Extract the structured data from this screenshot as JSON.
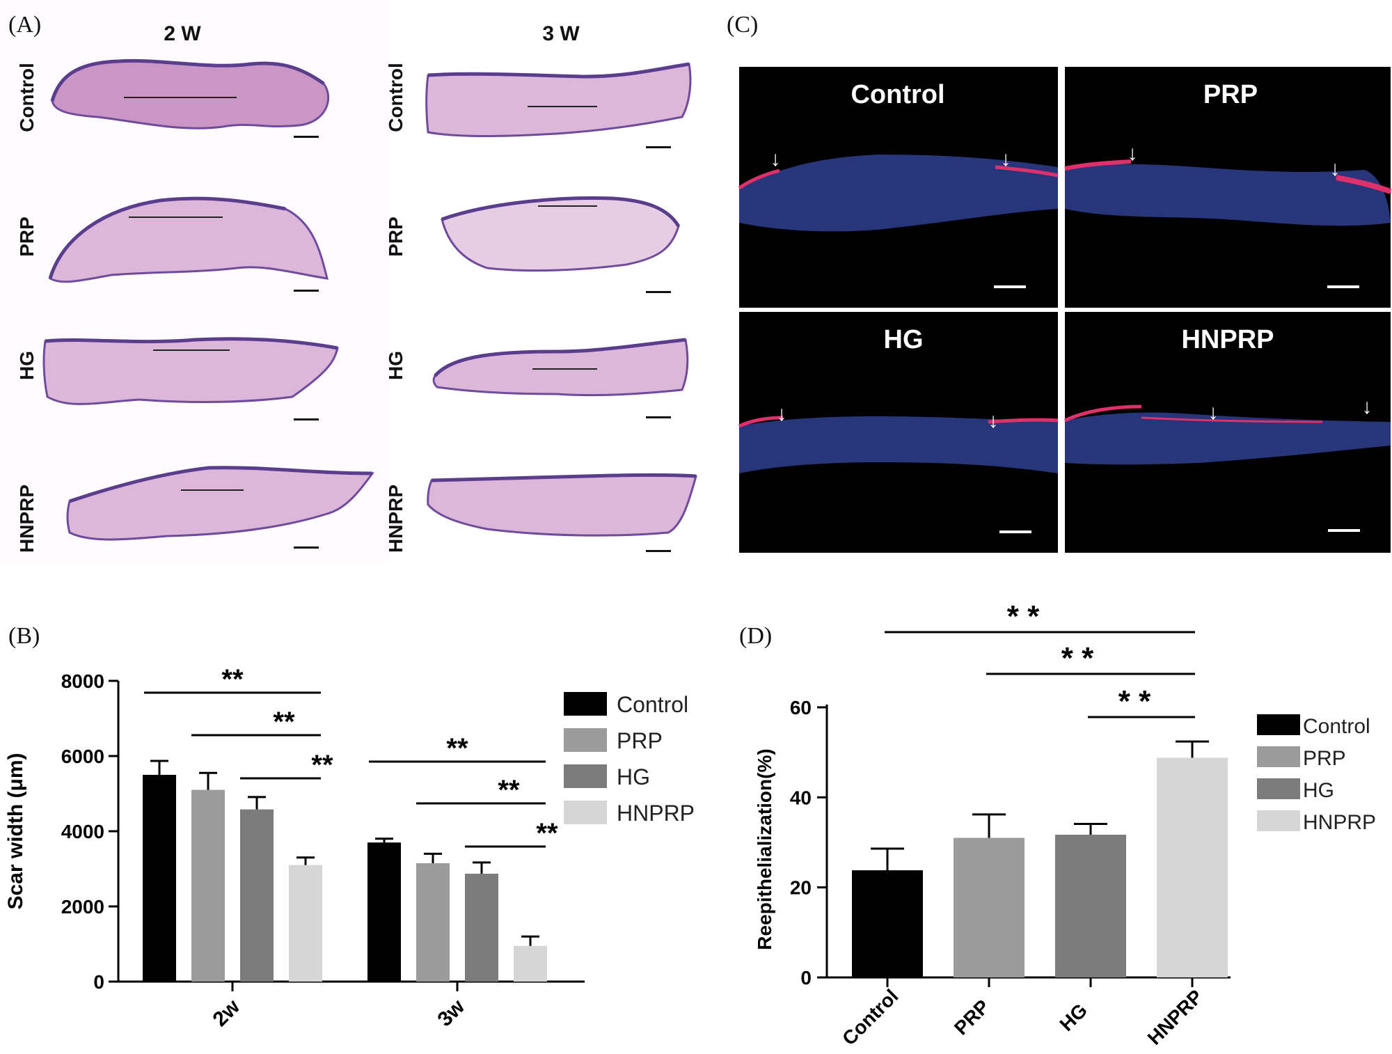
{
  "panels": {
    "A": {
      "label": "(A)",
      "col_2w": "2 W",
      "col_3w": "3 W",
      "rows": [
        "Control",
        "PRP",
        "HG",
        "HNPRP"
      ]
    },
    "B": {
      "label": "(B)"
    },
    "C": {
      "label": "(C)",
      "tiles": [
        "Control",
        "PRP",
        "HG",
        "HNPRP"
      ]
    },
    "D": {
      "label": "(D)"
    }
  },
  "colors": {
    "control": "#000000",
    "prp": "#9b9b9b",
    "hg": "#7b7b7b",
    "hnprp": "#d6d6d6",
    "he_tissue": "#c996c6",
    "he_epidermis": "#6f4a9d",
    "fluor_bg": "#000000",
    "fluor_blue": "#2e3f8f",
    "fluor_red": "#e0306a"
  },
  "chart_data": [
    {
      "id": "B",
      "type": "bar",
      "ylabel": "Scar width (μm)",
      "ylim": [
        0,
        8000
      ],
      "yticks": [
        "0",
        "2000",
        "4000",
        "6000",
        "8000"
      ],
      "categories": [
        "2w",
        "3w"
      ],
      "series": [
        {
          "name": "Control",
          "values": [
            5500,
            3700
          ],
          "errors": [
            370,
            100
          ]
        },
        {
          "name": "PRP",
          "values": [
            5100,
            3150
          ],
          "errors": [
            450,
            250
          ]
        },
        {
          "name": "HG",
          "values": [
            4580,
            2870
          ],
          "errors": [
            330,
            300
          ]
        },
        {
          "name": "HNPRP",
          "values": [
            3100,
            950
          ],
          "errors": [
            200,
            250
          ]
        }
      ],
      "significance": [
        {
          "group": "2w",
          "from": "Control",
          "to": "HNPRP",
          "text": "**"
        },
        {
          "group": "2w",
          "from": "PRP",
          "to": "HNPRP",
          "text": "**"
        },
        {
          "group": "2w",
          "from": "HG",
          "to": "HNPRP",
          "text": "**"
        },
        {
          "group": "3w",
          "from": "Control",
          "to": "HNPRP",
          "text": "**"
        },
        {
          "group": "3w",
          "from": "PRP",
          "to": "HNPRP",
          "text": "**"
        },
        {
          "group": "3w",
          "from": "HG",
          "to": "HNPRP",
          "text": "**"
        }
      ],
      "legend": [
        "Control",
        "PRP",
        "HG",
        "HNPRP"
      ]
    },
    {
      "id": "D",
      "type": "bar",
      "ylabel": "Reepithelialization(%)",
      "ylim": [
        0,
        60
      ],
      "yticks": [
        "0",
        "20",
        "40",
        "60"
      ],
      "categories": [
        "Control",
        "PRP",
        "HG",
        "HNPRP"
      ],
      "values": [
        23.8,
        31.0,
        31.7,
        48.8
      ],
      "errors": [
        4.8,
        5.2,
        2.4,
        3.6
      ],
      "significance": [
        {
          "from": "Control",
          "to": "HNPRP",
          "text": "* *"
        },
        {
          "from": "PRP",
          "to": "HNPRP",
          "text": "* *"
        },
        {
          "from": "HG",
          "to": "HNPRP",
          "text": "* *"
        }
      ],
      "legend": [
        "Control",
        "PRP",
        "HG",
        "HNPRP"
      ]
    }
  ]
}
